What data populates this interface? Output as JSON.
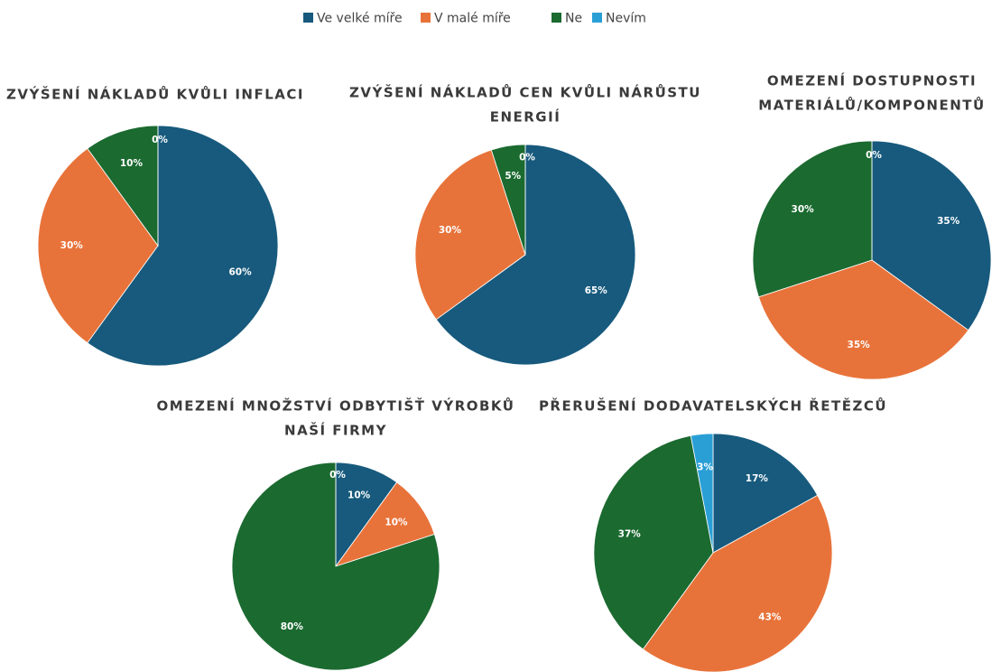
{
  "legend": {
    "categories": [
      "Ve velké míře",
      "V malé míře",
      "Ne",
      "Nevím"
    ],
    "colors": [
      "#175a7d",
      "#e8733a",
      "#1b6a30",
      "#2a9fd6"
    ]
  },
  "chart_data": [
    {
      "type": "pie",
      "title": [
        "ZVÝŠENÍ NÁKLADŮ KVŮLI INFLACI"
      ],
      "values": [
        60,
        30,
        10,
        0
      ],
      "value_labels": [
        "60%",
        "30%",
        "10%",
        "0%"
      ]
    },
    {
      "type": "pie",
      "title": [
        "ZVÝŠENÍ NÁKLADŮ CEN KVŮLI NÁRŮSTU",
        "ENERGIÍ"
      ],
      "values": [
        65,
        30,
        5,
        0
      ],
      "value_labels": [
        "65%",
        "30%",
        "5%",
        "0%"
      ]
    },
    {
      "type": "pie",
      "title": [
        "OMEZENÍ DOSTUPNOSTI",
        "MATERIÁLŮ/KOMPONENTŮ"
      ],
      "values": [
        35,
        35,
        30,
        0
      ],
      "value_labels": [
        "35%",
        "35%",
        "30%",
        "0%"
      ]
    },
    {
      "type": "pie",
      "title": [
        "OMEZENÍ MNOŽSTVÍ ODBYTIŠŤ VÝROBKŮ",
        "NAŠÍ FIRMY"
      ],
      "values": [
        10,
        10,
        80,
        0
      ],
      "value_labels": [
        "10%",
        "10%",
        "80%",
        "0%"
      ]
    },
    {
      "type": "pie",
      "title": [
        "PŘERUŠENÍ DODAVATELSKÝCH ŘETĚZCŮ"
      ],
      "values": [
        17,
        43,
        37,
        3
      ],
      "value_labels": [
        "17%",
        "43%",
        "37%",
        "3%"
      ]
    }
  ]
}
